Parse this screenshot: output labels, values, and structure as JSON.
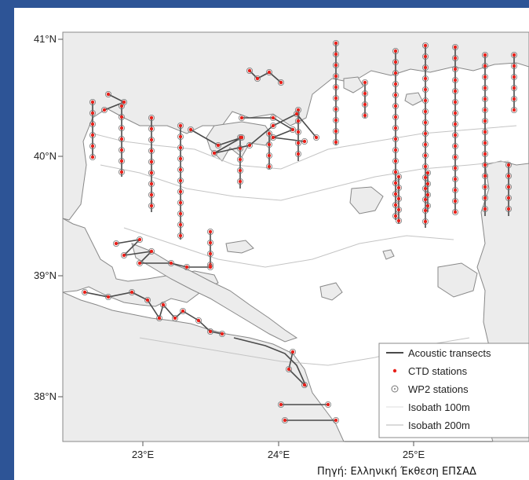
{
  "axes": {
    "lat_ticks": [
      "41°N",
      "40°N",
      "39°N",
      "38°N"
    ],
    "lon_ticks": [
      "23°E",
      "24°E",
      "25°E"
    ]
  },
  "legend": {
    "items": [
      {
        "key": "acoustic",
        "label": "Acoustic transects"
      },
      {
        "key": "ctd",
        "label": "CTD stations"
      },
      {
        "key": "wp2",
        "label": "WP2 stations"
      },
      {
        "key": "iso100",
        "label": "Isobath 100m"
      },
      {
        "key": "iso200",
        "label": "Isobath 200m"
      }
    ]
  },
  "colors": {
    "background": "#2d5496",
    "land": "#ececec",
    "sea": "#ffffff",
    "coastline": "#888888",
    "acoustic": "#4a4a4a",
    "ctd": "#e8201a",
    "wp2_ring": "#777777",
    "isobath": "#c4c4c4"
  },
  "source": "Πηγή: Ελληνική Έκθεση ΕΠΣΑΔ"
}
